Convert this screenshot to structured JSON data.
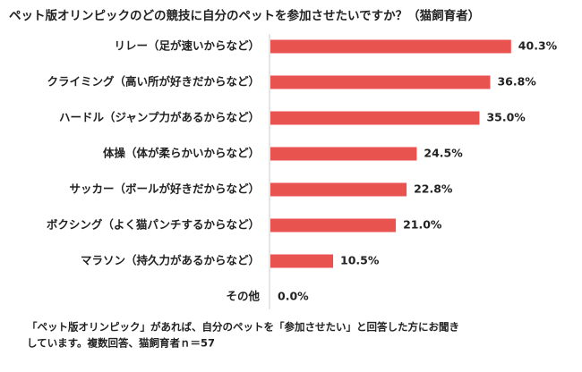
{
  "chart_data": {
    "type": "bar",
    "orientation": "horizontal",
    "title": "ペット版オリンピックのどの競技に自分のペットを参加させたいですか？（猫飼育者）",
    "categories": [
      "リレー（足が速いからなど）",
      "クライミング（高い所が好きだからなど）",
      "ハードル（ジャンプ力があるからなど）",
      "体操（体が柔らかいからなど）",
      "サッカー（ボールが好きだからなど）",
      "ボクシング（よく猫パンチするからなど）",
      "マラソン（持久力があるからなど）",
      "その他"
    ],
    "values": [
      40.3,
      36.8,
      35.0,
      24.5,
      22.8,
      21.0,
      10.5,
      0.0
    ],
    "value_labels": [
      "40.3%",
      "36.8%",
      "35.0%",
      "24.5%",
      "22.8%",
      "21.0%",
      "10.5%",
      "0.0%"
    ],
    "color": "#e8534f",
    "note": [
      "「ペット版オリンピック」があれば、自分のペットを「参加させたい」と回答した方にお聞き",
      "しています。複数回答、猫飼育者ｎ＝57"
    ]
  }
}
